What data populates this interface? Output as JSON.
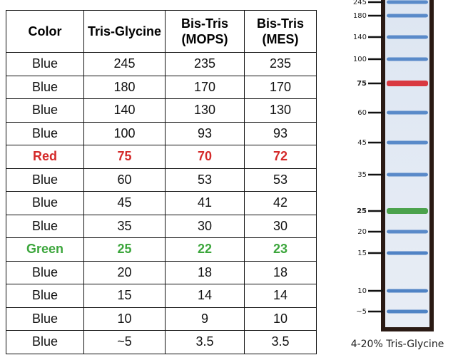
{
  "table": {
    "header": [
      "Color",
      "Tris-Glycine",
      "Bis-Tris (MOPS)",
      "Bis-Tris (MES)"
    ],
    "rows": [
      [
        "Blue",
        "245",
        "235",
        "235"
      ],
      [
        "Blue",
        "180",
        "170",
        "170"
      ],
      [
        "Blue",
        "140",
        "130",
        "130"
      ],
      [
        "Blue",
        "100",
        "93",
        "93"
      ],
      [
        "Red",
        "75",
        "70",
        "72"
      ],
      [
        "Blue",
        "60",
        "53",
        "53"
      ],
      [
        "Blue",
        "45",
        "41",
        "42"
      ],
      [
        "Blue",
        "35",
        "30",
        "30"
      ],
      [
        "Green",
        "25",
        "22",
        "23"
      ],
      [
        "Blue",
        "20",
        "18",
        "18"
      ],
      [
        "Blue",
        "15",
        "14",
        "14"
      ],
      [
        "Blue",
        "10",
        "9",
        "10"
      ],
      [
        "Blue",
        "~5",
        "3.5",
        "3.5"
      ]
    ],
    "row_colors": [
      "#111",
      "#111",
      "#111",
      "#111",
      "#d42a2a",
      "#111",
      "#111",
      "#111",
      "#3ca63c",
      "#111",
      "#111",
      "#111",
      "#111"
    ]
  },
  "gel": {
    "caption": "4-20% Tris-Glycine",
    "bands": [
      {
        "label": "245",
        "color": "#4a80c4"
      },
      {
        "label": "180",
        "color": "#4a80c4"
      },
      {
        "label": "140",
        "color": "#4a80c4"
      },
      {
        "label": "100",
        "color": "#4a80c4"
      },
      {
        "label": "75",
        "color": "#d8262e"
      },
      {
        "label": "60",
        "color": "#4a80c4"
      },
      {
        "label": "45",
        "color": "#4a80c4"
      },
      {
        "label": "35",
        "color": "#4a80c4"
      },
      {
        "label": "25",
        "color": "#3a9a3a"
      },
      {
        "label": "20",
        "color": "#4a80c4"
      },
      {
        "label": "15",
        "color": "#3f78c0"
      },
      {
        "label": "10",
        "color": "#3f78c0"
      },
      {
        "label": "~5",
        "color": "#3f78c0"
      }
    ]
  }
}
